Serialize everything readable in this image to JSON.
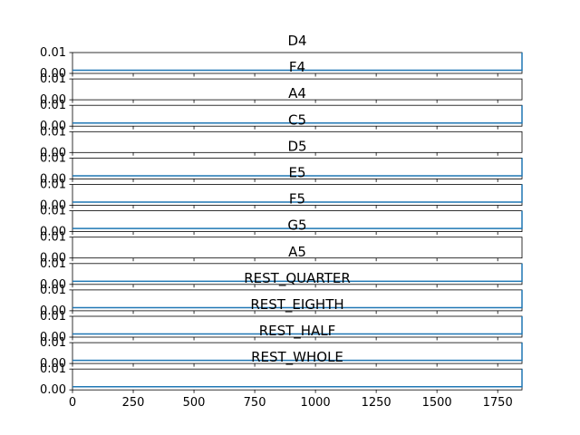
{
  "figure": {
    "background": "#ffffff"
  },
  "chart_data": {
    "type": "line",
    "shared_x": true,
    "xlim": [
      0,
      1850
    ],
    "x_ticks": [
      0,
      250,
      500,
      750,
      1000,
      1250,
      1500,
      1750
    ],
    "y_ticks_label": [
      "0.00",
      "0.01"
    ],
    "ylim": [
      0,
      0.01
    ],
    "line_color": "#1f77b4",
    "subplots": [
      {
        "title": "D4",
        "x": [
          0,
          1850,
          1850
        ],
        "y": [
          0.0015,
          0.0015,
          0.01
        ]
      },
      {
        "title": "F4",
        "x": [],
        "y": []
      },
      {
        "title": "A4",
        "x": [
          0,
          1850,
          1850
        ],
        "y": [
          0.0015,
          0.0015,
          0.01
        ]
      },
      {
        "title": "C5",
        "x": [],
        "y": []
      },
      {
        "title": "D5",
        "x": [
          0,
          1850,
          1850
        ],
        "y": [
          0.0015,
          0.0015,
          0.01
        ]
      },
      {
        "title": "E5",
        "x": [
          0,
          1850,
          1850
        ],
        "y": [
          0.0015,
          0.0015,
          0.01
        ]
      },
      {
        "title": "F5",
        "x": [
          0,
          1850,
          1850
        ],
        "y": [
          0.0015,
          0.0015,
          0.01
        ]
      },
      {
        "title": "G5",
        "x": [],
        "y": []
      },
      {
        "title": "A5",
        "x": [
          0,
          1850,
          1850
        ],
        "y": [
          0.0015,
          0.0015,
          0.01
        ]
      },
      {
        "title": "REST_QUARTER",
        "x": [
          0,
          1850,
          1850
        ],
        "y": [
          0.0015,
          0.0015,
          0.01
        ]
      },
      {
        "title": "REST_EIGHTH",
        "x": [
          0,
          1850,
          1850
        ],
        "y": [
          0.0015,
          0.0015,
          0.01
        ]
      },
      {
        "title": "REST_HALF",
        "x": [
          0,
          1850,
          1850
        ],
        "y": [
          0.0015,
          0.0015,
          0.01
        ]
      },
      {
        "title": "REST_WHOLE",
        "x": [
          0,
          1850,
          1850
        ],
        "y": [
          0.0015,
          0.0015,
          0.01
        ]
      }
    ]
  }
}
